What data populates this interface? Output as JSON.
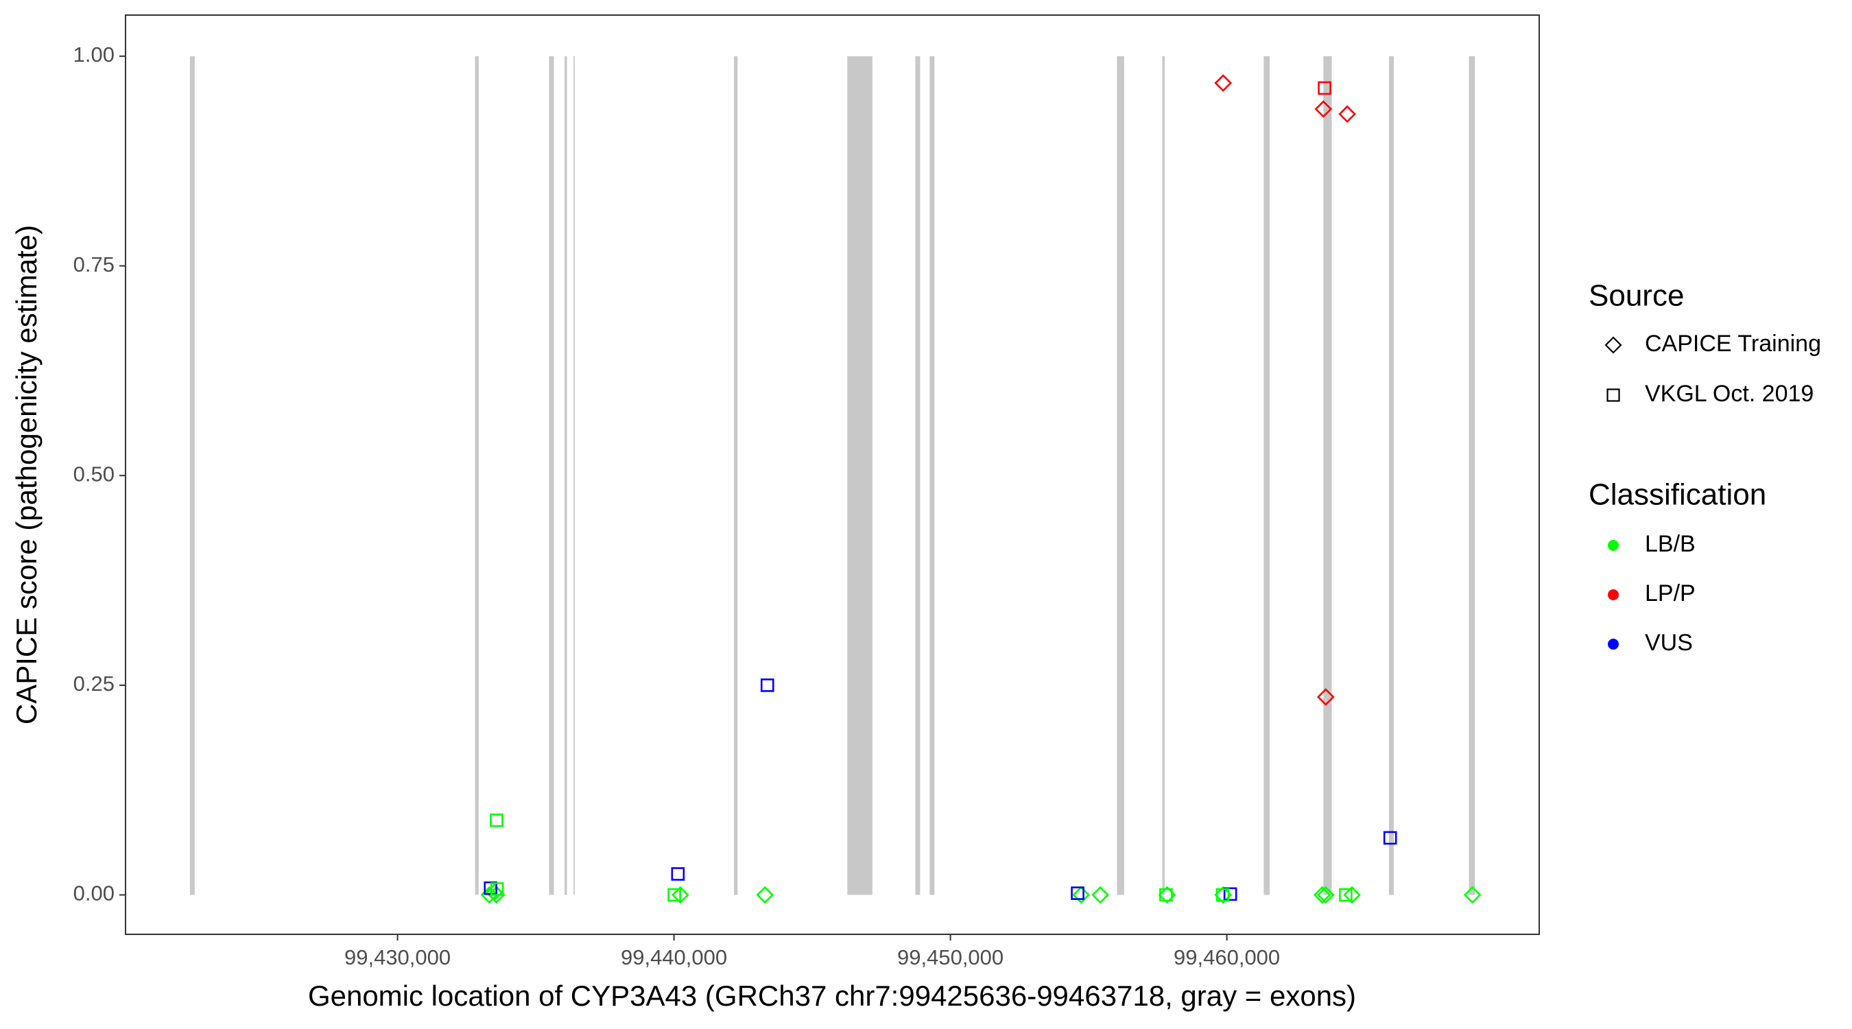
{
  "chart_data": {
    "type": "scatter",
    "xlabel": "Genomic location of CYP3A43 (GRCh37 chr7:99425636-99463718, gray = exons)",
    "ylabel": "CAPICE score (pathogenicity estimate)",
    "xlim": [
      99420160,
      99471300
    ],
    "ylim": [
      -0.047,
      1.049
    ],
    "xticks": [
      {
        "value": 99430000,
        "label": "99,430,000"
      },
      {
        "value": 99440000,
        "label": "99,440,000"
      },
      {
        "value": 99450000,
        "label": "99,450,000"
      },
      {
        "value": 99460000,
        "label": "99,460,000"
      }
    ],
    "yticks": [
      {
        "value": 0,
        "label": "0.00"
      },
      {
        "value": 0.25,
        "label": "0.25"
      },
      {
        "value": 0.5,
        "label": "0.50"
      },
      {
        "value": 0.75,
        "label": "0.75"
      },
      {
        "value": 1,
        "label": "1.00"
      }
    ],
    "exon_color": "#c8c8c8",
    "exons": [
      [
        99422490,
        99422663
      ],
      [
        99432805,
        99432935
      ],
      [
        99435481,
        99435654
      ],
      [
        99436042,
        99436129
      ],
      [
        99436366,
        99436409
      ],
      [
        99442171,
        99442300
      ],
      [
        99446271,
        99447177
      ],
      [
        99448731,
        99448904
      ],
      [
        99449249,
        99449422
      ],
      [
        99456025,
        99456284
      ],
      [
        99457665,
        99457751
      ],
      [
        99461334,
        99461550
      ],
      [
        99463492,
        99463794
      ],
      [
        99465865,
        99466038
      ],
      [
        99468757,
        99468973
      ]
    ],
    "exon_span": [
      0,
      1
    ],
    "source_title": "Source",
    "sources": [
      {
        "name": "CAPICE Training",
        "shape": "diamond"
      },
      {
        "name": "VKGL Oct. 2019",
        "shape": "square"
      }
    ],
    "class_title": "Classification",
    "classes": [
      {
        "name": "LB/B",
        "color": "#00ff00"
      },
      {
        "name": "LP/P",
        "color": "#ff0000"
      },
      {
        "name": "VUS",
        "color": "#0000ff"
      }
    ],
    "series": [
      {
        "source": "CAPICE Training",
        "classification": "LP/P",
        "x": [
          99459866,
          99463492,
          99464355,
          99463578
        ],
        "values": [
          0.968,
          0.937,
          0.931,
          0.236
        ]
      },
      {
        "source": "CAPICE Training",
        "classification": "LB/B",
        "x": [
          99433323,
          99433500,
          99433580,
          99440229,
          99443293,
          99454731,
          99455422,
          99457838,
          99459866,
          99463450,
          99463578,
          99464527,
          99468886
        ],
        "values": [
          0,
          0.003,
          0,
          0,
          0,
          0,
          0,
          0,
          0,
          0,
          0,
          0,
          0
        ]
      },
      {
        "source": "VKGL Oct. 2019",
        "classification": "LP/P",
        "x": [
          99463535
        ],
        "values": [
          0.962
        ]
      },
      {
        "source": "VKGL Oct. 2019",
        "classification": "VUS",
        "x": [
          99443379,
          99440143,
          99465908,
          99433366,
          99454602,
          99460125
        ],
        "values": [
          0.25,
          0.025,
          0.068,
          0.008,
          0.002,
          0.001
        ]
      },
      {
        "source": "VKGL Oct. 2019",
        "classification": "LB/B",
        "x": [
          99433582,
          99440013,
          99433600,
          99457800,
          99464300,
          99459850
        ],
        "values": [
          0.089,
          0,
          0.007,
          0,
          0,
          0
        ]
      }
    ]
  }
}
